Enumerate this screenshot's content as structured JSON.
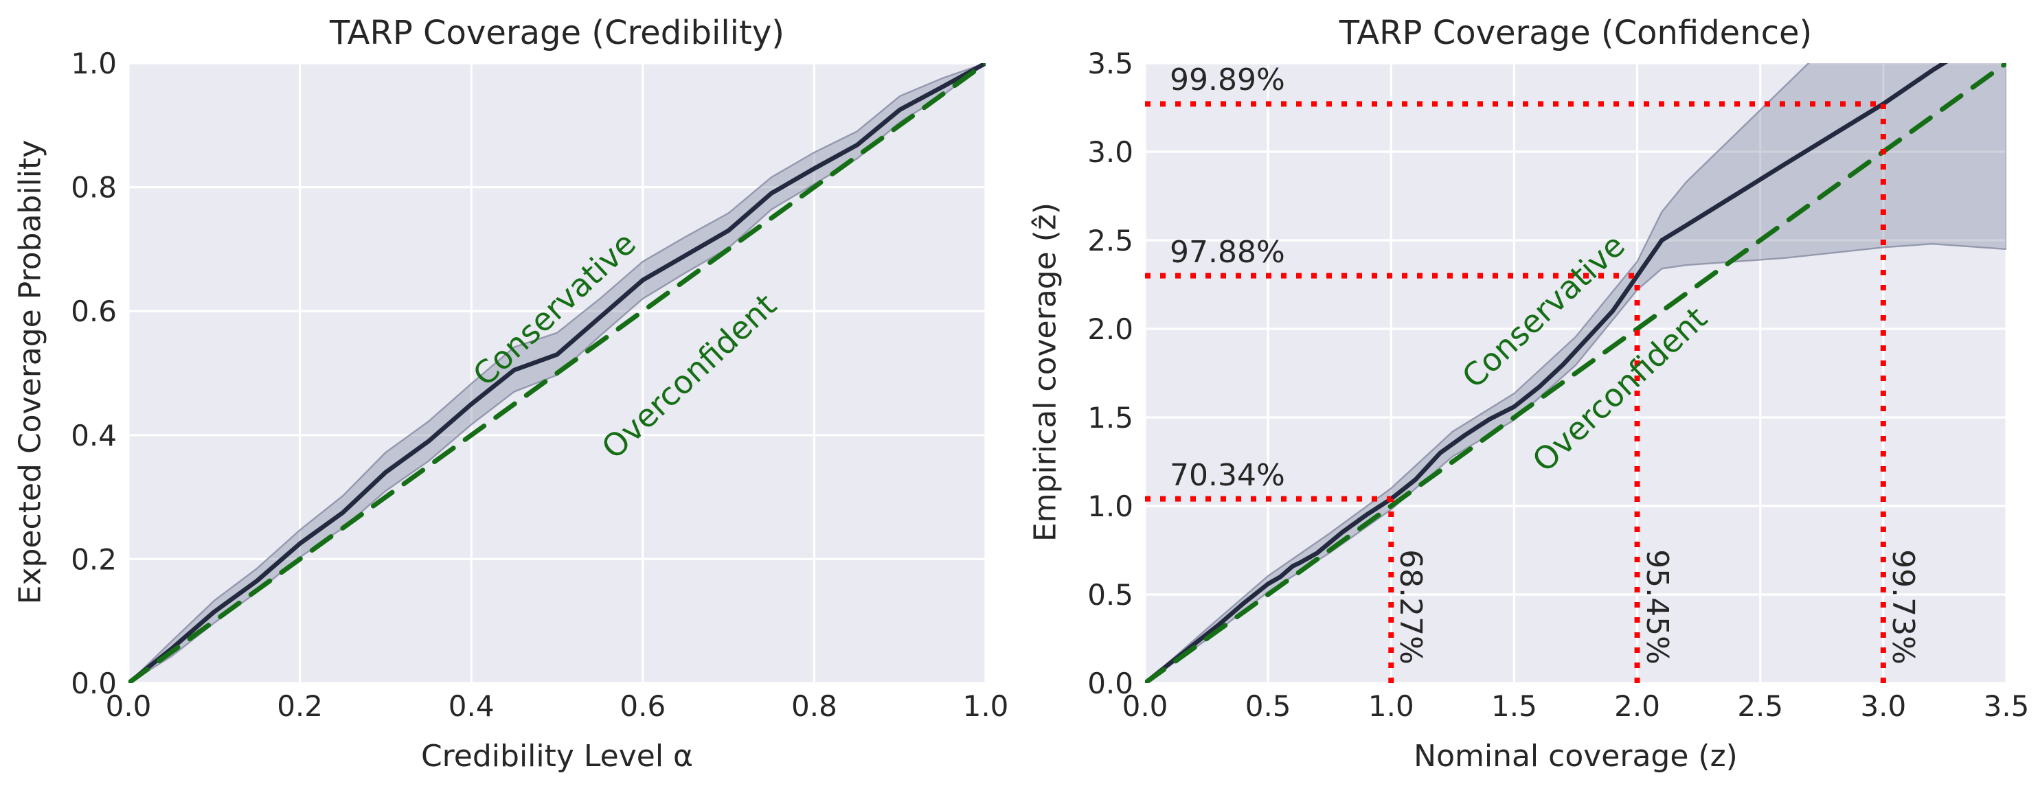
{
  "figure": {
    "background": "#ffffff",
    "axes_background": "#eaeaf2",
    "grid_color": "#ffffff",
    "text_color": "#262626",
    "curve_color": "#232a40",
    "ideal_color": "#156e15",
    "guide_color": "#ff0000",
    "band_fill": "rgba(106,114,142,0.32)",
    "band_edge": "rgba(136,142,166,0.85)"
  },
  "chart_data": [
    {
      "id": "credibility",
      "type": "line",
      "title": "TARP Coverage (Credibility)",
      "xlabel": "Credibility Level α",
      "ylabel": "Expected Coverage Probability",
      "xlim": [
        0,
        1
      ],
      "ylim": [
        0,
        1
      ],
      "xticks": [
        0.0,
        0.2,
        0.4,
        0.6,
        0.8,
        1.0
      ],
      "yticks": [
        0.0,
        0.2,
        0.4,
        0.6,
        0.8,
        1.0
      ],
      "grid": true,
      "legend": "none",
      "series": [
        {
          "name": "expected-coverage",
          "style": "solid",
          "x": [
            0,
            0.05,
            0.1,
            0.15,
            0.2,
            0.25,
            0.3,
            0.35,
            0.4,
            0.45,
            0.5,
            0.55,
            0.6,
            0.65,
            0.7,
            0.75,
            0.8,
            0.85,
            0.9,
            0.95,
            1.0
          ],
          "y": [
            0,
            0.055,
            0.115,
            0.165,
            0.225,
            0.275,
            0.34,
            0.39,
            0.45,
            0.505,
            0.53,
            0.59,
            0.65,
            0.69,
            0.73,
            0.79,
            0.83,
            0.868,
            0.925,
            0.962,
            1.0
          ]
        },
        {
          "name": "ideal-calibration",
          "style": "dashed",
          "x": [
            0,
            1
          ],
          "y": [
            0,
            1
          ]
        }
      ],
      "band": {
        "name": "uncertainty-band",
        "x": [
          0,
          0.05,
          0.1,
          0.15,
          0.2,
          0.25,
          0.3,
          0.35,
          0.4,
          0.45,
          0.5,
          0.55,
          0.6,
          0.65,
          0.7,
          0.75,
          0.8,
          0.85,
          0.9,
          0.95,
          1.0
        ],
        "lo": [
          0,
          0.043,
          0.097,
          0.147,
          0.203,
          0.25,
          0.31,
          0.358,
          0.417,
          0.47,
          0.497,
          0.56,
          0.62,
          0.662,
          0.702,
          0.764,
          0.805,
          0.846,
          0.905,
          0.948,
          1.0
        ],
        "hi": [
          0,
          0.067,
          0.133,
          0.185,
          0.247,
          0.302,
          0.372,
          0.422,
          0.483,
          0.542,
          0.565,
          0.62,
          0.68,
          0.72,
          0.758,
          0.816,
          0.856,
          0.89,
          0.947,
          0.976,
          1.0
        ]
      },
      "annotations": [
        {
          "text": "Conservative",
          "x": 0.497,
          "y": 0.603
        },
        {
          "text": "Overconfident",
          "x": 0.654,
          "y": 0.495
        }
      ]
    },
    {
      "id": "confidence",
      "type": "line",
      "title": "TARP Coverage (Confidence)",
      "xlabel": "Nominal coverage (z)",
      "ylabel": "Empirical coverage (ẑ)",
      "xlim": [
        0,
        3.5
      ],
      "ylim": [
        0,
        3.5
      ],
      "xticks": [
        0.0,
        0.5,
        1.0,
        1.5,
        2.0,
        2.5,
        3.0,
        3.5
      ],
      "yticks": [
        0.0,
        0.5,
        1.0,
        1.5,
        2.0,
        2.5,
        3.0,
        3.5
      ],
      "grid": true,
      "legend": "none",
      "series": [
        {
          "name": "empirical-coverage",
          "style": "solid",
          "x": [
            0,
            0.1,
            0.2,
            0.3,
            0.4,
            0.5,
            0.55,
            0.6,
            0.63,
            0.7,
            0.8,
            0.9,
            1.0,
            1.1,
            1.2,
            1.3,
            1.4,
            1.5,
            1.6,
            1.7,
            1.8,
            1.9,
            2.0,
            2.1,
            2.2,
            2.4,
            2.6,
            2.8,
            3.0,
            3.2,
            3.5
          ],
          "y": [
            0,
            0.11,
            0.22,
            0.33,
            0.45,
            0.56,
            0.6,
            0.66,
            0.68,
            0.735,
            0.85,
            0.95,
            1.04,
            1.15,
            1.3,
            1.4,
            1.49,
            1.56,
            1.67,
            1.8,
            1.95,
            2.1,
            2.3,
            2.5,
            2.585,
            2.757,
            2.93,
            3.1,
            3.27,
            3.46,
            3.72
          ]
        },
        {
          "name": "ideal-calibration",
          "style": "dashed",
          "x": [
            0,
            3.5
          ],
          "y": [
            0,
            3.5
          ]
        }
      ],
      "band": {
        "name": "uncertainty-band",
        "x": [
          0,
          0.25,
          0.5,
          0.75,
          1.0,
          1.25,
          1.5,
          1.75,
          2.0,
          2.05,
          2.1,
          2.2,
          2.4,
          2.6,
          2.8,
          3.0,
          3.2,
          3.5
        ],
        "lo": [
          0,
          0.245,
          0.515,
          0.735,
          0.98,
          1.28,
          1.485,
          1.795,
          2.22,
          2.28,
          2.34,
          2.36,
          2.38,
          2.4,
          2.43,
          2.46,
          2.48,
          2.45
        ],
        "hi": [
          0,
          0.305,
          0.605,
          0.845,
          1.1,
          1.42,
          1.635,
          1.955,
          2.38,
          2.52,
          2.66,
          2.83,
          3.1,
          3.37,
          3.64,
          3.9,
          4.0,
          4.1
        ]
      },
      "annotations": [
        {
          "text": "Conservative",
          "x": 1.62,
          "y": 2.1
        },
        {
          "text": "Overconfident",
          "x": 1.93,
          "y": 1.66
        }
      ],
      "guides": [
        {
          "h_label": "70.34%",
          "v_label": "68.27%",
          "x": 1.0,
          "y": 1.04
        },
        {
          "h_label": "97.88%",
          "v_label": "95.45%",
          "x": 2.0,
          "y": 2.3
        },
        {
          "h_label": "99.89%",
          "v_label": "99.73%",
          "x": 3.0,
          "y": 3.27
        }
      ]
    }
  ]
}
